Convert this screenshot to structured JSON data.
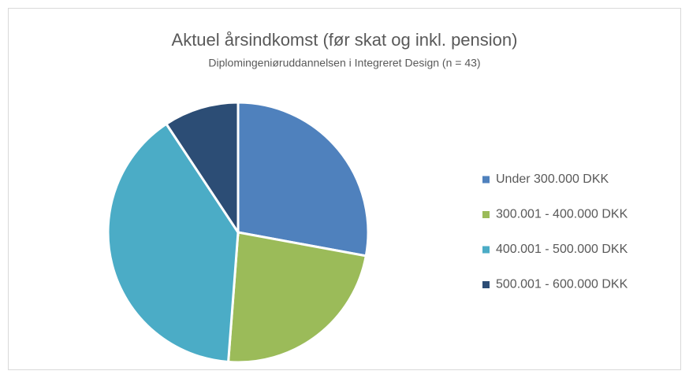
{
  "chart_data": {
    "type": "pie",
    "title": "Aktuel årsindkomst (før skat og inkl. pension)",
    "subtitle": "Diplomingeniøruddannelsen i Integreret Design (n = 43)",
    "categories": [
      "Under 300.000 DKK",
      "300.001 - 400.000 DKK",
      "400.001 - 500.000 DKK",
      "500.001 - 600.000 DKK"
    ],
    "values": [
      27.9,
      23.3,
      39.5,
      9.3
    ],
    "colors": [
      "#4f81bd",
      "#9bbb59",
      "#4bacc6",
      "#2c4d75"
    ],
    "legend": "right"
  }
}
